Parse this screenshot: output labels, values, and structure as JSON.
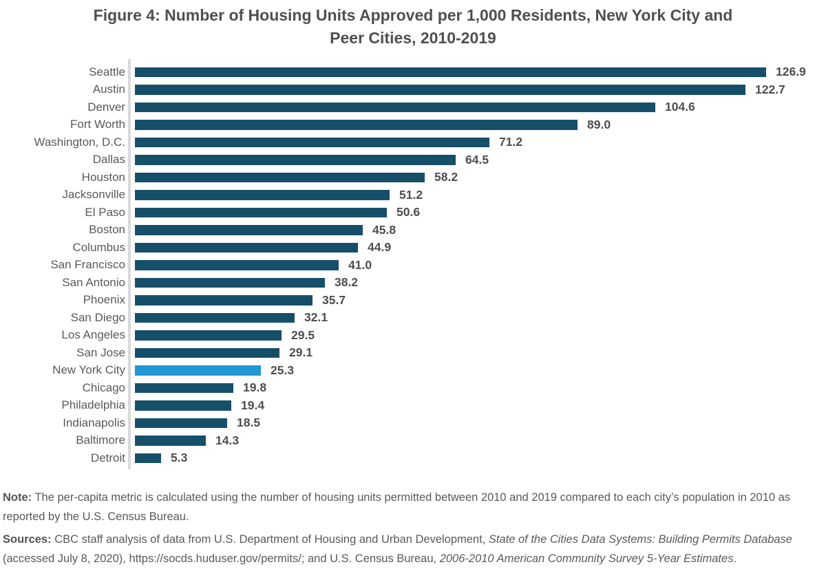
{
  "figure": {
    "title_lines": [
      "Figure 4: Number of Housing Units Approved per 1,000 Residents, New York City and",
      "Peer Cities, 2010-2019"
    ]
  },
  "chart_data": {
    "type": "bar",
    "orientation": "horizontal",
    "title": "Figure 4: Number of Housing Units Approved per 1,000 Residents, New York City and Peer Cities, 2010-2019",
    "xlabel": "",
    "ylabel": "",
    "xlim": [
      0,
      135
    ],
    "grid": false,
    "legend": false,
    "value_labels_shown": true,
    "highlight_category": "New York City",
    "colors": {
      "bar": "#164F6A",
      "highlight": "#2196D3",
      "axis_line": "#D9D9D9",
      "category_text": "#595959",
      "value_text": "#4D4D4D",
      "title_text": "#4F4F4F"
    },
    "categories": [
      "Seattle",
      "Austin",
      "Denver",
      "Fort Worth",
      "Washington, D.C.",
      "Dallas",
      "Houston",
      "Jacksonville",
      "El Paso",
      "Boston",
      "Columbus",
      "San Francisco",
      "San Antonio",
      "Phoenix",
      "San Diego",
      "Los Angeles",
      "San Jose",
      "New York City",
      "Chicago",
      "Philadelphia",
      "Indianapolis",
      "Baltimore",
      "Detroit"
    ],
    "values": [
      126.9,
      122.7,
      104.6,
      89.0,
      71.2,
      64.5,
      58.2,
      51.2,
      50.6,
      45.8,
      44.9,
      41.0,
      38.2,
      35.7,
      32.1,
      29.5,
      29.1,
      25.3,
      19.8,
      19.4,
      18.5,
      14.3,
      5.3
    ],
    "value_labels": [
      "126.9",
      "122.7",
      "104.6",
      "89.0",
      "71.2",
      "64.5",
      "58.2",
      "51.2",
      "50.6",
      "45.8",
      "44.9",
      "41.0",
      "38.2",
      "35.7",
      "32.1",
      "29.5",
      "29.1",
      "25.3",
      "19.8",
      "19.4",
      "18.5",
      "14.3",
      "5.3"
    ]
  },
  "note": {
    "label": "Note:",
    "text": " The per-capita metric is calculated using the number of housing units permitted between 2010 and 2019 compared to each city’s population in 2010 as reported by the U.S. Census Bureau."
  },
  "sources": {
    "label": "Sources:",
    "seg1": " CBC staff analysis of data from U.S. Department of Housing and Urban Development, ",
    "italic1": "State of the Cities Data Systems: Building Permits Database",
    "seg2": " (accessed July 8, 2020), ",
    "url": "https://socds.huduser.gov/permits/",
    "seg3": "; and U.S. Census Bureau, ",
    "italic2": "2006-2010 American Community Survey 5-Year Estimates",
    "seg4": "."
  }
}
